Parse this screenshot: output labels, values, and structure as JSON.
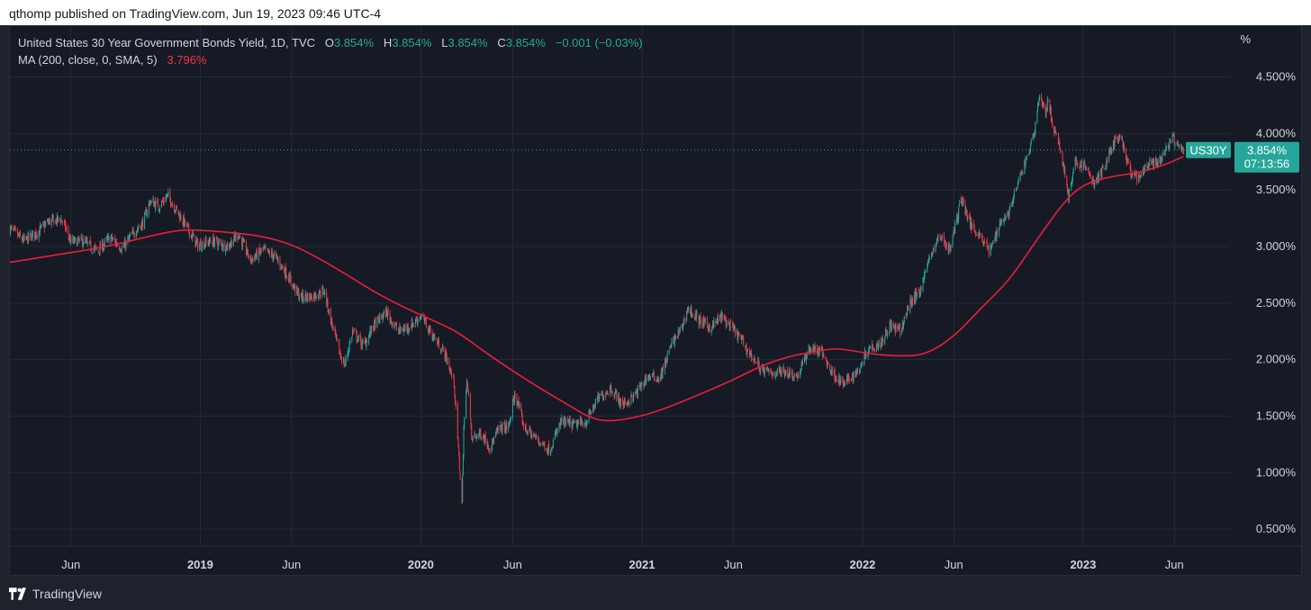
{
  "header": {
    "publisher_line": "qthomp published on TradingView.com, Jun 19, 2023 09:46 UTC-4"
  },
  "legend": {
    "symbol": "United States 30 Year Government Bonds Yield, 1D, TVC",
    "o_label": "O",
    "o_value": "3.854%",
    "h_label": "H",
    "h_value": "3.854%",
    "l_label": "L",
    "l_value": "3.854%",
    "c_label": "C",
    "c_value": "3.854%",
    "change": "−0.001 (−0.03%)",
    "ma_label": "MA (200, close, 0, SMA, 5)",
    "ma_value": "3.796%"
  },
  "price_tag": {
    "symbol": "US30Y",
    "price": "3.854%",
    "countdown": "07:13:56"
  },
  "footer": {
    "brand": "TradingView"
  },
  "colors": {
    "up": "#26a69a",
    "down": "#f23645",
    "ma": "#e91e3c",
    "grid": "#252a36",
    "axis_text": "#d1d4dc",
    "last_line": "#26a69a"
  },
  "chart_data": {
    "type": "candlestick",
    "title": "United States 30 Year Government Bonds Yield, 1D, TVC",
    "y_unit": "%",
    "ylim": [
      0.35,
      4.95
    ],
    "y_ticks": [
      {
        "v": 4.5,
        "label": "4.500%"
      },
      {
        "v": 4.0,
        "label": "4.000%"
      },
      {
        "v": 3.5,
        "label": "3.500%"
      },
      {
        "v": 3.0,
        "label": "3.000%"
      },
      {
        "v": 2.5,
        "label": "2.500%"
      },
      {
        "v": 2.0,
        "label": "2.000%"
      },
      {
        "v": 1.5,
        "label": "1.500%"
      },
      {
        "v": 1.0,
        "label": "1.000%"
      },
      {
        "v": 0.5,
        "label": "0.500%"
      }
    ],
    "xlim": [
      "2018-02-20",
      "2023-09-01"
    ],
    "x_ticks": [
      {
        "date": "2018-06-01",
        "label": "Jun",
        "bold": false
      },
      {
        "date": "2019-01-01",
        "label": "2019",
        "bold": true
      },
      {
        "date": "2019-06-01",
        "label": "Jun",
        "bold": false
      },
      {
        "date": "2020-01-01",
        "label": "2020",
        "bold": true
      },
      {
        "date": "2020-06-01",
        "label": "Jun",
        "bold": false
      },
      {
        "date": "2021-01-01",
        "label": "2021",
        "bold": true
      },
      {
        "date": "2021-06-01",
        "label": "Jun",
        "bold": false
      },
      {
        "date": "2022-01-01",
        "label": "2022",
        "bold": true
      },
      {
        "date": "2022-06-01",
        "label": "Jun",
        "bold": false
      },
      {
        "date": "2023-01-01",
        "label": "2023",
        "bold": true
      },
      {
        "date": "2023-06-01",
        "label": "Jun",
        "bold": false
      }
    ],
    "last_price": 3.854,
    "series": [
      {
        "name": "US30Y",
        "kind": "close_path",
        "points": [
          [
            "2018-02-20",
            3.16
          ],
          [
            "2018-03-15",
            3.05
          ],
          [
            "2018-04-05",
            3.12
          ],
          [
            "2018-04-25",
            3.22
          ],
          [
            "2018-05-17",
            3.24
          ],
          [
            "2018-06-01",
            3.04
          ],
          [
            "2018-06-20",
            3.05
          ],
          [
            "2018-07-15",
            2.96
          ],
          [
            "2018-08-05",
            3.08
          ],
          [
            "2018-08-25",
            2.98
          ],
          [
            "2018-09-15",
            3.14
          ],
          [
            "2018-09-28",
            3.21
          ],
          [
            "2018-10-10",
            3.4
          ],
          [
            "2018-10-25",
            3.36
          ],
          [
            "2018-11-08",
            3.45
          ],
          [
            "2018-11-25",
            3.3
          ],
          [
            "2018-12-12",
            3.15
          ],
          [
            "2018-12-28",
            3.01
          ],
          [
            "2019-01-20",
            3.05
          ],
          [
            "2019-02-15",
            3.0
          ],
          [
            "2019-03-05",
            3.11
          ],
          [
            "2019-03-25",
            2.88
          ],
          [
            "2019-04-15",
            2.97
          ],
          [
            "2019-05-05",
            2.91
          ],
          [
            "2019-05-25",
            2.75
          ],
          [
            "2019-06-15",
            2.55
          ],
          [
            "2019-07-05",
            2.56
          ],
          [
            "2019-07-25",
            2.61
          ],
          [
            "2019-08-05",
            2.35
          ],
          [
            "2019-08-20",
            2.05
          ],
          [
            "2019-08-28",
            1.95
          ],
          [
            "2019-09-10",
            2.25
          ],
          [
            "2019-09-28",
            2.12
          ],
          [
            "2019-10-15",
            2.3
          ],
          [
            "2019-11-05",
            2.42
          ],
          [
            "2019-11-25",
            2.25
          ],
          [
            "2019-12-15",
            2.3
          ],
          [
            "2020-01-01",
            2.39
          ],
          [
            "2020-01-20",
            2.22
          ],
          [
            "2020-02-10",
            2.05
          ],
          [
            "2020-02-25",
            1.8
          ],
          [
            "2020-03-09",
            0.72
          ],
          [
            "2020-03-12",
            1.4
          ],
          [
            "2020-03-18",
            1.85
          ],
          [
            "2020-03-25",
            1.3
          ],
          [
            "2020-04-10",
            1.35
          ],
          [
            "2020-04-25",
            1.22
          ],
          [
            "2020-05-10",
            1.4
          ],
          [
            "2020-05-25",
            1.4
          ],
          [
            "2020-06-05",
            1.7
          ],
          [
            "2020-06-20",
            1.4
          ],
          [
            "2020-07-10",
            1.3
          ],
          [
            "2020-08-01",
            1.2
          ],
          [
            "2020-08-20",
            1.45
          ],
          [
            "2020-09-10",
            1.42
          ],
          [
            "2020-09-30",
            1.45
          ],
          [
            "2020-10-20",
            1.65
          ],
          [
            "2020-11-10",
            1.75
          ],
          [
            "2020-11-30",
            1.6
          ],
          [
            "2020-12-20",
            1.68
          ],
          [
            "2021-01-10",
            1.85
          ],
          [
            "2021-01-31",
            1.84
          ],
          [
            "2021-02-20",
            2.15
          ],
          [
            "2021-03-08",
            2.28
          ],
          [
            "2021-03-18",
            2.45
          ],
          [
            "2021-04-05",
            2.35
          ],
          [
            "2021-04-25",
            2.28
          ],
          [
            "2021-05-12",
            2.38
          ],
          [
            "2021-05-30",
            2.28
          ],
          [
            "2021-06-15",
            2.17
          ],
          [
            "2021-06-30",
            2.04
          ],
          [
            "2021-07-20",
            1.9
          ],
          [
            "2021-08-05",
            1.88
          ],
          [
            "2021-08-25",
            1.9
          ],
          [
            "2021-09-15",
            1.85
          ],
          [
            "2021-10-05",
            2.1
          ],
          [
            "2021-10-25",
            2.07
          ],
          [
            "2021-11-10",
            1.9
          ],
          [
            "2021-11-30",
            1.78
          ],
          [
            "2021-12-10",
            1.83
          ],
          [
            "2021-12-25",
            1.9
          ],
          [
            "2022-01-10",
            2.1
          ],
          [
            "2022-01-31",
            2.15
          ],
          [
            "2022-02-15",
            2.3
          ],
          [
            "2022-03-05",
            2.25
          ],
          [
            "2022-03-20",
            2.5
          ],
          [
            "2022-04-05",
            2.6
          ],
          [
            "2022-04-25",
            2.95
          ],
          [
            "2022-05-10",
            3.1
          ],
          [
            "2022-05-25",
            2.97
          ],
          [
            "2022-06-14",
            3.43
          ],
          [
            "2022-06-28",
            3.2
          ],
          [
            "2022-07-15",
            3.1
          ],
          [
            "2022-07-31",
            2.95
          ],
          [
            "2022-08-15",
            3.2
          ],
          [
            "2022-08-31",
            3.3
          ],
          [
            "2022-09-15",
            3.55
          ],
          [
            "2022-09-30",
            3.8
          ],
          [
            "2022-10-10",
            3.95
          ],
          [
            "2022-10-21",
            4.35
          ],
          [
            "2022-10-30",
            4.17
          ],
          [
            "2022-11-05",
            4.3
          ],
          [
            "2022-11-12",
            4.05
          ],
          [
            "2022-11-25",
            3.85
          ],
          [
            "2022-12-08",
            3.45
          ],
          [
            "2022-12-20",
            3.75
          ],
          [
            "2023-01-05",
            3.7
          ],
          [
            "2023-01-20",
            3.55
          ],
          [
            "2023-02-05",
            3.7
          ],
          [
            "2023-02-20",
            3.92
          ],
          [
            "2023-03-05",
            3.95
          ],
          [
            "2023-03-20",
            3.65
          ],
          [
            "2023-04-05",
            3.6
          ],
          [
            "2023-04-20",
            3.75
          ],
          [
            "2023-05-05",
            3.72
          ],
          [
            "2023-05-20",
            3.88
          ],
          [
            "2023-05-28",
            3.98
          ],
          [
            "2023-06-05",
            3.88
          ],
          [
            "2023-06-16",
            3.854
          ]
        ]
      },
      {
        "name": "MA (200, close, 0, SMA, 5)",
        "kind": "line",
        "points": [
          [
            "2018-02-20",
            2.86
          ],
          [
            "2018-05-01",
            2.92
          ],
          [
            "2018-08-01",
            3.0
          ],
          [
            "2018-10-15",
            3.1
          ],
          [
            "2018-12-01",
            3.15
          ],
          [
            "2019-01-15",
            3.14
          ],
          [
            "2019-03-01",
            3.12
          ],
          [
            "2019-04-15",
            3.09
          ],
          [
            "2019-06-01",
            3.02
          ],
          [
            "2019-07-15",
            2.9
          ],
          [
            "2019-09-01",
            2.75
          ],
          [
            "2019-10-15",
            2.6
          ],
          [
            "2019-12-01",
            2.47
          ],
          [
            "2020-01-15",
            2.36
          ],
          [
            "2020-03-01",
            2.25
          ],
          [
            "2020-04-15",
            2.07
          ],
          [
            "2020-06-01",
            1.9
          ],
          [
            "2020-07-15",
            1.75
          ],
          [
            "2020-09-01",
            1.6
          ],
          [
            "2020-10-01",
            1.5
          ],
          [
            "2020-11-01",
            1.45
          ],
          [
            "2020-12-15",
            1.48
          ],
          [
            "2021-02-01",
            1.55
          ],
          [
            "2021-04-01",
            1.68
          ],
          [
            "2021-06-01",
            1.82
          ],
          [
            "2021-07-15",
            1.94
          ],
          [
            "2021-09-01",
            2.03
          ],
          [
            "2021-10-15",
            2.07
          ],
          [
            "2021-11-15",
            2.1
          ],
          [
            "2021-12-15",
            2.08
          ],
          [
            "2022-01-15",
            2.05
          ],
          [
            "2022-03-01",
            2.03
          ],
          [
            "2022-04-15",
            2.04
          ],
          [
            "2022-06-01",
            2.2
          ],
          [
            "2022-07-15",
            2.45
          ],
          [
            "2022-09-01",
            2.7
          ],
          [
            "2022-10-15",
            3.05
          ],
          [
            "2022-12-01",
            3.4
          ],
          [
            "2023-01-01",
            3.55
          ],
          [
            "2023-02-15",
            3.62
          ],
          [
            "2023-04-01",
            3.65
          ],
          [
            "2023-05-15",
            3.72
          ],
          [
            "2023-06-16",
            3.796
          ]
        ]
      }
    ]
  }
}
